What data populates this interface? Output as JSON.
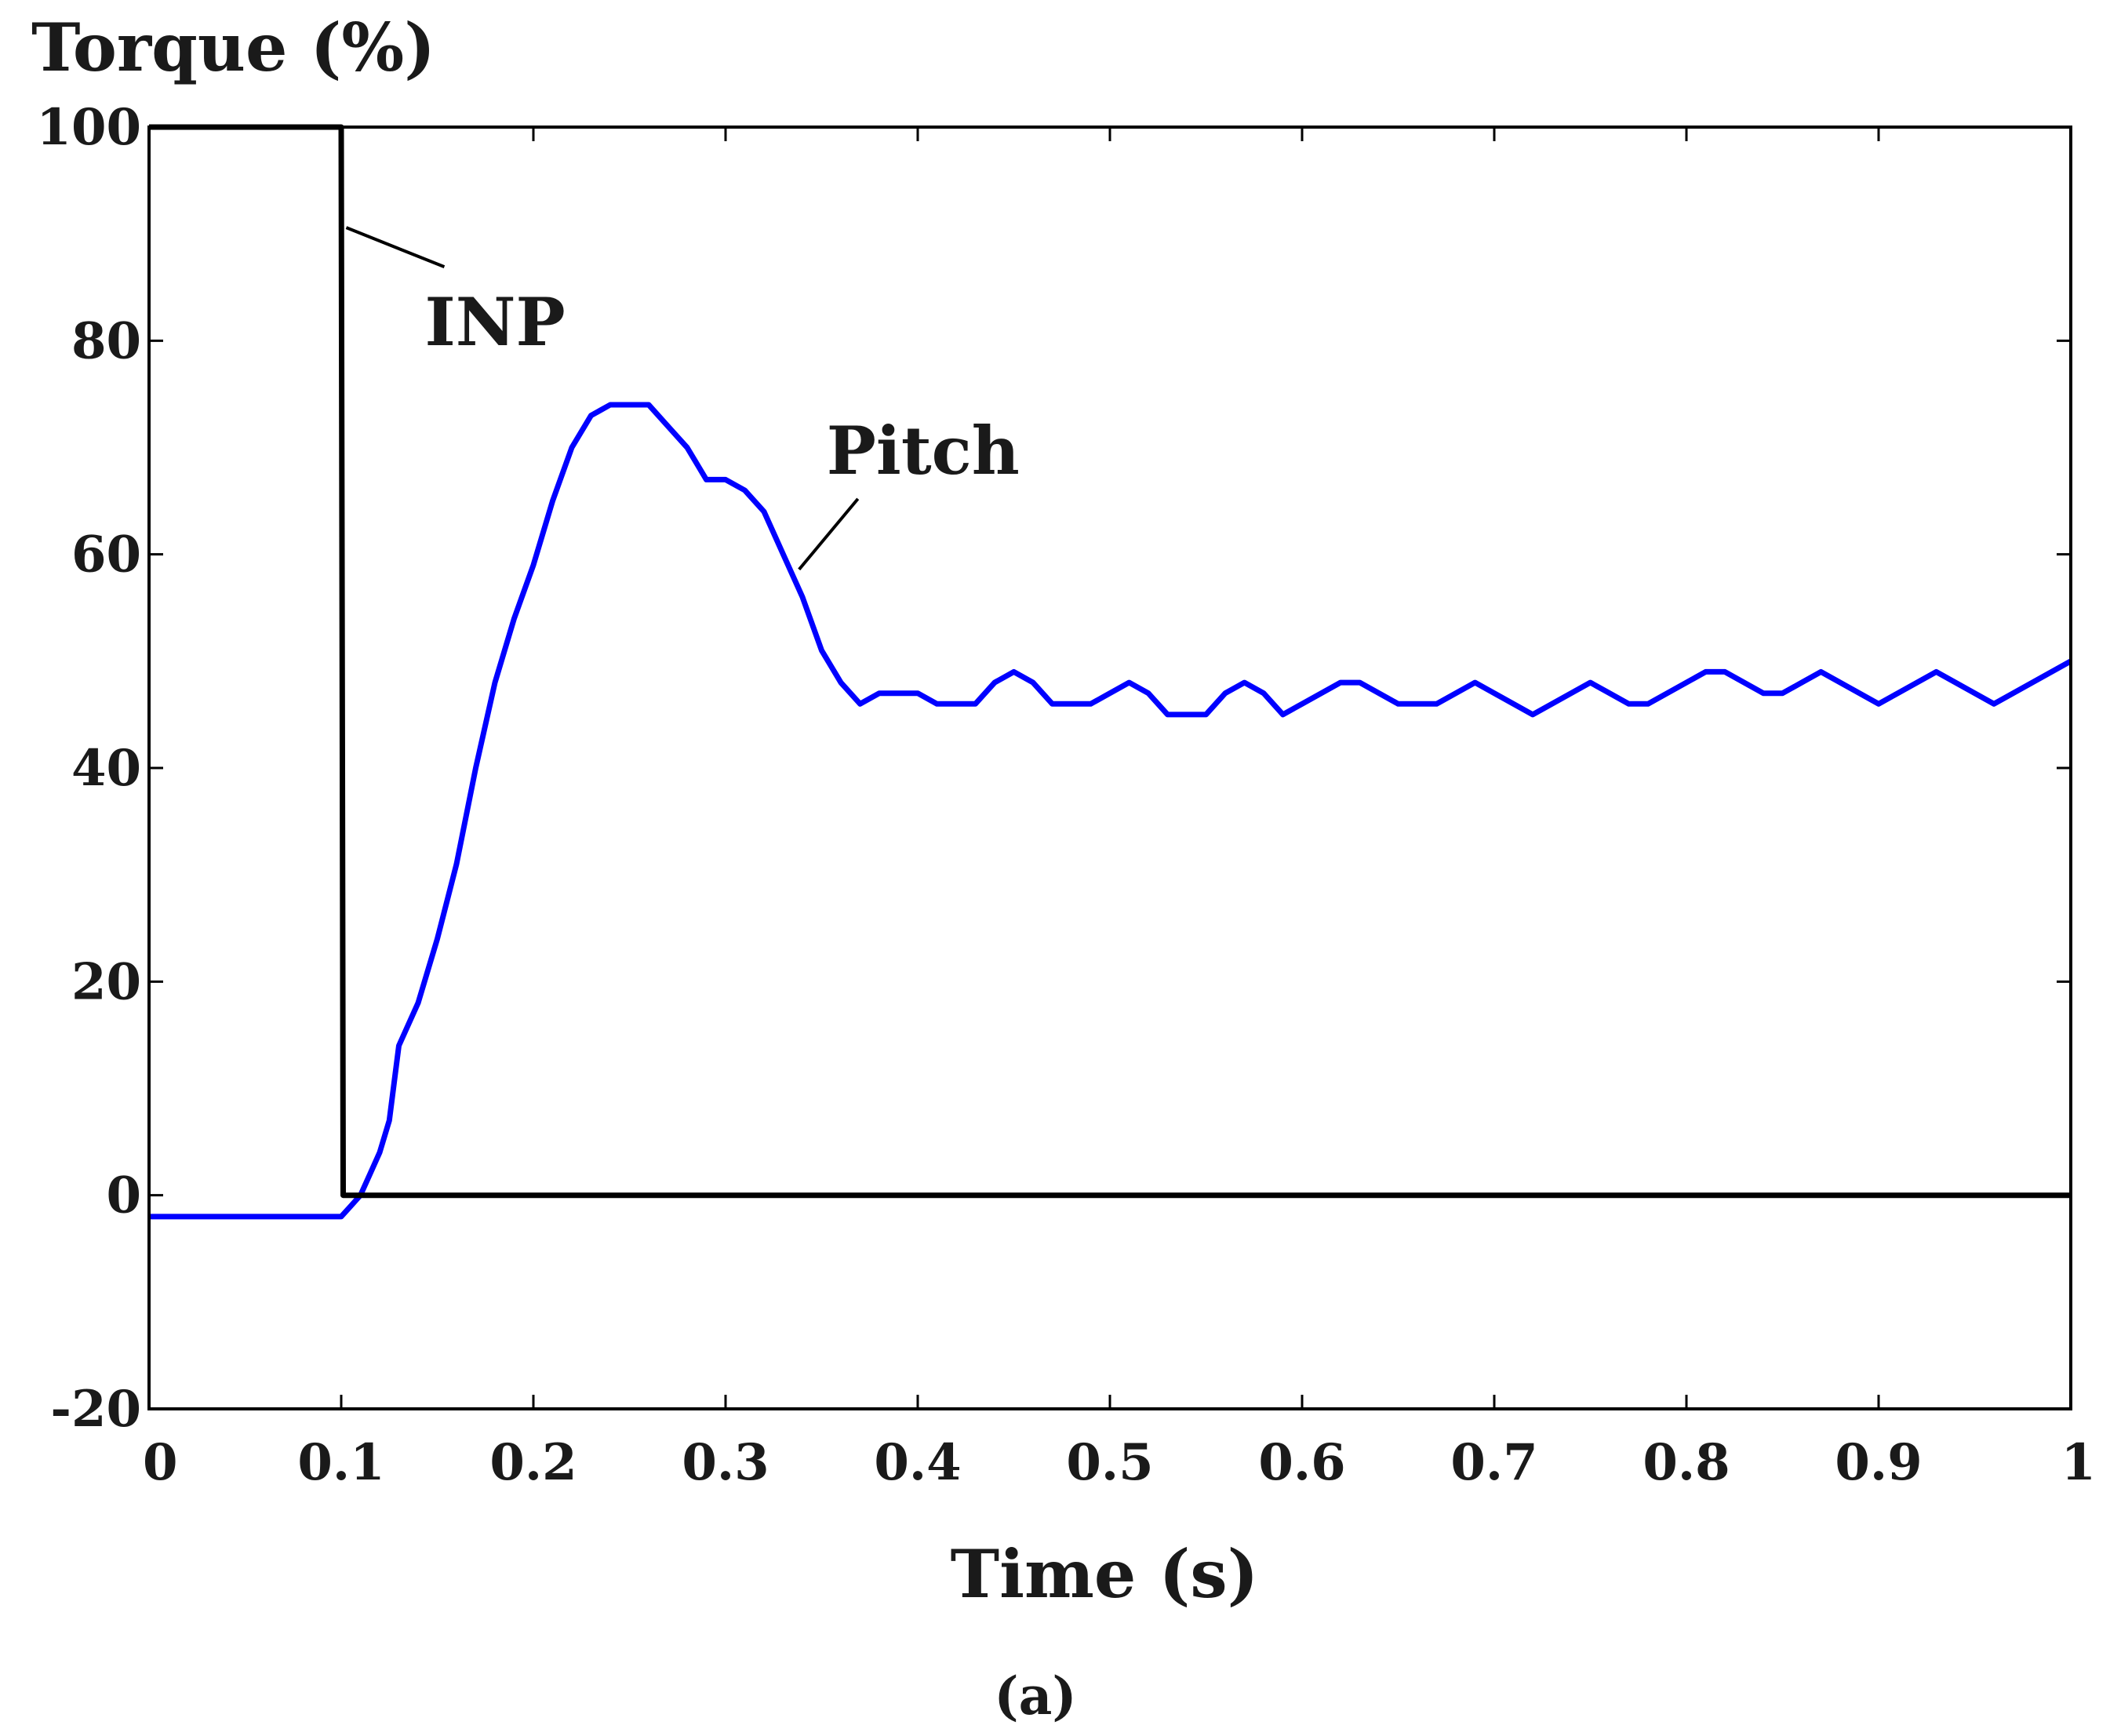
{
  "chart_data": {
    "type": "line",
    "ylabel": "Torque (%)",
    "xlabel": "Time (s)",
    "caption": "(a)",
    "xlim": [
      0,
      1
    ],
    "ylim": [
      -20,
      100
    ],
    "grid": false,
    "x_ticks": [
      {
        "value": 0,
        "label": "0"
      },
      {
        "value": 0.1,
        "label": "0.1"
      },
      {
        "value": 0.2,
        "label": "0.2"
      },
      {
        "value": 0.3,
        "label": "0.3"
      },
      {
        "value": 0.4,
        "label": "0.4"
      },
      {
        "value": 0.5,
        "label": "0.5"
      },
      {
        "value": 0.6,
        "label": "0.6"
      },
      {
        "value": 0.7,
        "label": "0.7"
      },
      {
        "value": 0.8,
        "label": "0.8"
      },
      {
        "value": 0.9,
        "label": "0.9"
      },
      {
        "value": 1,
        "label": "1"
      }
    ],
    "y_ticks": [
      {
        "value": -20,
        "label": "-20"
      },
      {
        "value": 0,
        "label": "0"
      },
      {
        "value": 20,
        "label": "20"
      },
      {
        "value": 40,
        "label": "40"
      },
      {
        "value": 60,
        "label": "60"
      },
      {
        "value": 80,
        "label": "80"
      },
      {
        "value": 100,
        "label": "100"
      }
    ],
    "series": [
      {
        "name": "INP",
        "color": "#000000",
        "points": [
          [
            0,
            100
          ],
          [
            0.1,
            100
          ],
          [
            0.101,
            0
          ],
          [
            1,
            0
          ]
        ]
      },
      {
        "name": "Pitch",
        "color": "#0000ff",
        "points": [
          [
            0,
            -2
          ],
          [
            0.1,
            -2
          ],
          [
            0.105,
            -1
          ],
          [
            0.11,
            0
          ],
          [
            0.115,
            2
          ],
          [
            0.12,
            4
          ],
          [
            0.125,
            7
          ],
          [
            0.13,
            14
          ],
          [
            0.14,
            18
          ],
          [
            0.15,
            24
          ],
          [
            0.16,
            31
          ],
          [
            0.17,
            40
          ],
          [
            0.18,
            48
          ],
          [
            0.19,
            54
          ],
          [
            0.2,
            59
          ],
          [
            0.21,
            65
          ],
          [
            0.22,
            70
          ],
          [
            0.23,
            73
          ],
          [
            0.24,
            74
          ],
          [
            0.25,
            74
          ],
          [
            0.26,
            74
          ],
          [
            0.27,
            72
          ],
          [
            0.28,
            70
          ],
          [
            0.29,
            67
          ],
          [
            0.3,
            67
          ],
          [
            0.31,
            66
          ],
          [
            0.32,
            64
          ],
          [
            0.33,
            60
          ],
          [
            0.34,
            56
          ],
          [
            0.35,
            51
          ],
          [
            0.36,
            48
          ],
          [
            0.37,
            46
          ],
          [
            0.38,
            47
          ],
          [
            0.39,
            47
          ],
          [
            0.4,
            47
          ],
          [
            0.41,
            46
          ],
          [
            0.42,
            46
          ],
          [
            0.43,
            46
          ],
          [
            0.44,
            48
          ],
          [
            0.45,
            49
          ],
          [
            0.46,
            48
          ],
          [
            0.47,
            46
          ],
          [
            0.48,
            46
          ],
          [
            0.49,
            46
          ],
          [
            0.5,
            47
          ],
          [
            0.51,
            48
          ],
          [
            0.52,
            47
          ],
          [
            0.53,
            45
          ],
          [
            0.54,
            45
          ],
          [
            0.55,
            45
          ],
          [
            0.56,
            47
          ],
          [
            0.57,
            48
          ],
          [
            0.58,
            47
          ],
          [
            0.59,
            45
          ],
          [
            0.6,
            46
          ],
          [
            0.61,
            47
          ],
          [
            0.62,
            48
          ],
          [
            0.63,
            48
          ],
          [
            0.64,
            47
          ],
          [
            0.65,
            46
          ],
          [
            0.66,
            46
          ],
          [
            0.67,
            46
          ],
          [
            0.68,
            47
          ],
          [
            0.69,
            48
          ],
          [
            0.7,
            47
          ],
          [
            0.71,
            46
          ],
          [
            0.72,
            45
          ],
          [
            0.73,
            46
          ],
          [
            0.74,
            47
          ],
          [
            0.75,
            48
          ],
          [
            0.76,
            47
          ],
          [
            0.77,
            46
          ],
          [
            0.78,
            46
          ],
          [
            0.79,
            47
          ],
          [
            0.8,
            48
          ],
          [
            0.81,
            49
          ],
          [
            0.82,
            49
          ],
          [
            0.83,
            48
          ],
          [
            0.84,
            47
          ],
          [
            0.85,
            47
          ],
          [
            0.86,
            48
          ],
          [
            0.87,
            49
          ],
          [
            0.88,
            48
          ],
          [
            0.89,
            47
          ],
          [
            0.9,
            46
          ],
          [
            0.91,
            47
          ],
          [
            0.92,
            48
          ],
          [
            0.93,
            49
          ],
          [
            0.94,
            48
          ],
          [
            0.95,
            47
          ],
          [
            0.96,
            46
          ],
          [
            0.97,
            47
          ],
          [
            0.98,
            48
          ],
          [
            0.99,
            49
          ],
          [
            1,
            50
          ]
        ]
      }
    ],
    "annotations": [
      {
        "text": "INP",
        "target": [
          0.101,
          90
        ]
      },
      {
        "text": "Pitch",
        "target": [
          0.335,
          58
        ]
      }
    ]
  }
}
